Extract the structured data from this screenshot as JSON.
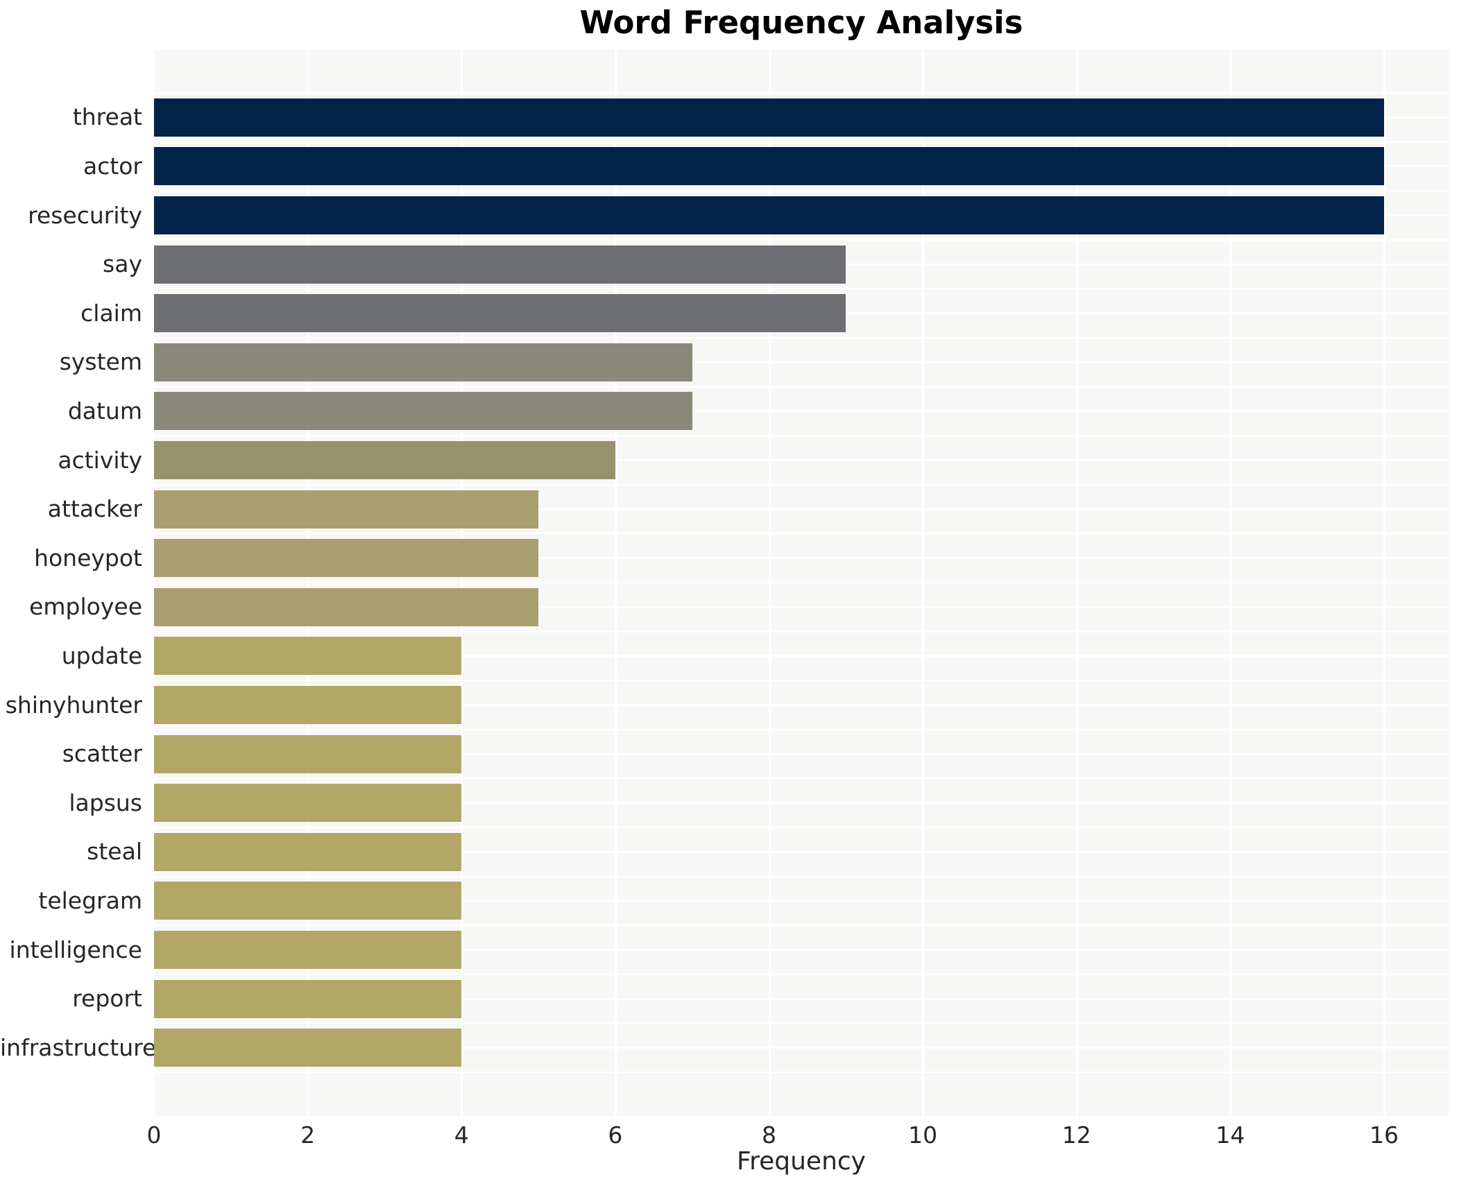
{
  "chart_data": {
    "type": "bar",
    "orientation": "horizontal",
    "title": "Word Frequency Analysis",
    "xlabel": "Frequency",
    "ylabel": "",
    "categories": [
      "threat",
      "actor",
      "resecurity",
      "say",
      "claim",
      "system",
      "datum",
      "activity",
      "attacker",
      "honeypot",
      "employee",
      "update",
      "shinyhunter",
      "scatter",
      "lapsus",
      "steal",
      "telegram",
      "intelligence",
      "report",
      "infrastructure"
    ],
    "values": [
      16,
      16,
      16,
      9,
      9,
      7,
      7,
      6,
      5,
      5,
      5,
      4,
      4,
      4,
      4,
      4,
      4,
      4,
      4,
      4
    ],
    "bar_colors": [
      "#042349",
      "#042349",
      "#042349",
      "#6d6e71",
      "#6d6e71",
      "#8a8878",
      "#8a8878",
      "#989170",
      "#a89e6f",
      "#a89e6f",
      "#a89e6f",
      "#b3a767",
      "#b3a767",
      "#b3a767",
      "#b3a767",
      "#b3a767",
      "#b3a767",
      "#b3a767",
      "#b3a767",
      "#b3a767"
    ],
    "xlim": [
      0,
      16
    ],
    "xticks": [
      0,
      2,
      4,
      6,
      8,
      10,
      12,
      14,
      16
    ],
    "grid": "white major and minor gridlines on light panel",
    "legend": "none",
    "colors": {
      "panel_bg": "#f7f7f6",
      "gridline": "#ffffff",
      "tick_text": "#262626",
      "title_text": "#000000"
    }
  }
}
